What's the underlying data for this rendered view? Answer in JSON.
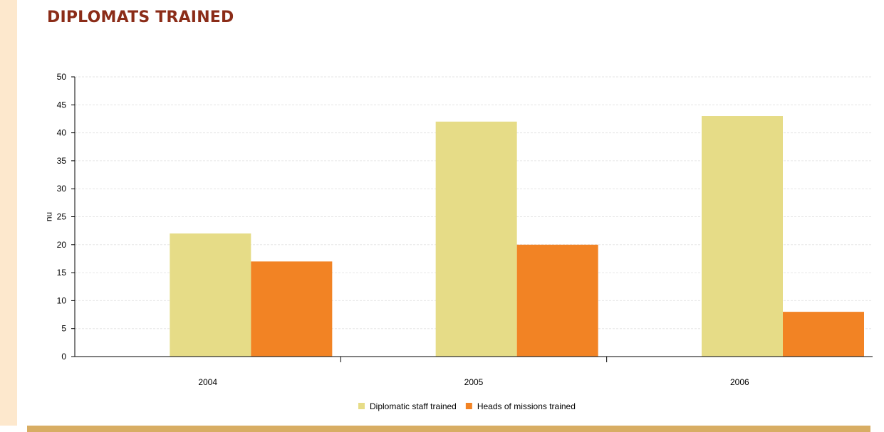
{
  "title": "DIPLOMATS TRAINED",
  "colors": {
    "title": "#8b2c18",
    "left_stripe": "#fde8cd",
    "bottom_bar": "#d8ad63",
    "grid": "#e6e6e6"
  },
  "chart_data": {
    "type": "bar",
    "title": "",
    "xlabel": "",
    "ylabel": "nu",
    "categories": [
      "2004",
      "2005",
      "2006"
    ],
    "series": [
      {
        "name": "Diplomatic staff trained",
        "values": [
          22,
          42,
          43
        ],
        "color": "#e6dc87"
      },
      {
        "name": "Heads of missions trained",
        "values": [
          17,
          20,
          8
        ],
        "color": "#f28324"
      }
    ],
    "ylim": [
      0,
      50
    ],
    "yticks": [
      "0",
      "5",
      "10",
      "15",
      "20",
      "25",
      "30",
      "35",
      "40",
      "45",
      "50"
    ],
    "grid": true,
    "legend": "bottom-center"
  }
}
